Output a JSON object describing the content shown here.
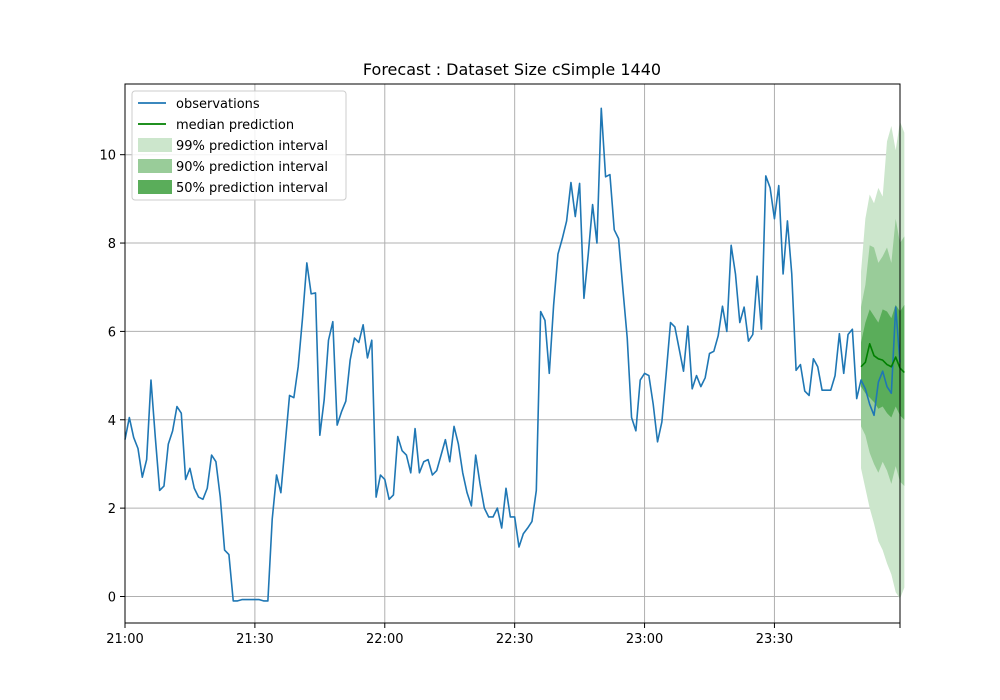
{
  "chart_data": {
    "type": "line",
    "title": "Forecast : Dataset Size cSimple 1440",
    "xlabel": "",
    "ylabel": "",
    "x_range": [
      "21:00",
      "23:59"
    ],
    "ylim": [
      -0.6,
      11.6
    ],
    "grid": true,
    "legend_position": "top-left",
    "x_tick_labels": [
      "21:00",
      "21:30",
      "22:00",
      "22:30",
      "23:00",
      "23:30"
    ],
    "y_ticks": [
      0,
      2,
      4,
      6,
      8,
      10
    ],
    "colors": {
      "observations": "#1f77b4",
      "median": "#008000",
      "band99": "#cce6cc",
      "band90": "#99cc99",
      "band50": "#5aad5a"
    },
    "legend": [
      {
        "label": "observations",
        "kind": "line",
        "color": "#1f77b4"
      },
      {
        "label": "median prediction",
        "kind": "line",
        "color": "#008000"
      },
      {
        "label": "99% prediction interval",
        "kind": "patch",
        "color": "#cce6cc"
      },
      {
        "label": "90% prediction interval",
        "kind": "patch",
        "color": "#99cc99"
      },
      {
        "label": "50% prediction interval",
        "kind": "patch",
        "color": "#5aad5a"
      }
    ],
    "observations": {
      "name": "observations",
      "minutes_start": 0,
      "step_minutes": 1,
      "values": [
        3.55,
        4.05,
        3.6,
        3.35,
        2.7,
        3.1,
        4.9,
        3.6,
        2.4,
        2.5,
        3.45,
        3.75,
        4.3,
        4.15,
        2.65,
        2.9,
        2.45,
        2.25,
        2.2,
        2.45,
        3.2,
        3.05,
        2.25,
        1.05,
        0.95,
        -0.1,
        -0.1,
        -0.07,
        -0.07,
        -0.07,
        -0.07,
        -0.07,
        -0.1,
        -0.1,
        1.75,
        2.75,
        2.35,
        3.45,
        4.55,
        4.5,
        5.2,
        6.3,
        7.55,
        6.85,
        6.87,
        3.65,
        4.45,
        5.8,
        6.22,
        3.88,
        4.18,
        4.42,
        5.35,
        5.85,
        5.75,
        6.15,
        5.4,
        5.8,
        2.25,
        2.75,
        2.65,
        2.2,
        2.3,
        3.62,
        3.3,
        3.2,
        2.8,
        3.8,
        2.8,
        3.05,
        3.1,
        2.75,
        2.85,
        3.2,
        3.55,
        3.05,
        3.85,
        3.45,
        2.8,
        2.35,
        2.05,
        3.2,
        2.55,
        2.0,
        1.8,
        1.8,
        2.0,
        1.55,
        2.45,
        1.8,
        1.8,
        1.12,
        1.42,
        1.55,
        1.7,
        2.4,
        6.45,
        6.25,
        5.05,
        6.6,
        7.75,
        8.1,
        8.5,
        9.37,
        8.6,
        9.35,
        6.75,
        7.75,
        8.87,
        8.0,
        11.05,
        9.5,
        9.55,
        8.3,
        8.1,
        6.95,
        5.85,
        4.05,
        3.75,
        4.9,
        5.05,
        5.0,
        4.35,
        3.5,
        3.95,
        5.05,
        6.2,
        6.1,
        5.6,
        5.1,
        6.12,
        4.7,
        5.0,
        4.75,
        4.95,
        5.5,
        5.55,
        5.9,
        6.57,
        6.0,
        7.95,
        7.3,
        6.2,
        6.55,
        5.78,
        5.93,
        7.25,
        6.05,
        9.52,
        9.25,
        8.55,
        9.3,
        7.3,
        8.5,
        7.3,
        5.12,
        5.25,
        4.65,
        4.55,
        5.38,
        5.2,
        4.67,
        4.67,
        4.67,
        5.0,
        5.95,
        5.05,
        5.93,
        6.05,
        4.48,
        4.9,
        4.7,
        4.35,
        4.1,
        4.85,
        5.1,
        4.75,
        4.6,
        6.55,
        5.3
      ]
    },
    "forecast": {
      "name": "median prediction",
      "minutes_start": 170,
      "step_minutes": 1,
      "median": [
        5.2,
        5.3,
        5.72,
        5.45,
        5.38,
        5.35,
        5.25,
        5.2,
        5.42,
        5.17,
        5.07
      ],
      "band50": {
        "lower": [
          4.75,
          4.6,
          4.5,
          4.4,
          4.25,
          4.3,
          4.15,
          4.05,
          4.3,
          4.1,
          4.0
        ],
        "upper": [
          5.75,
          6.2,
          6.5,
          6.35,
          6.2,
          6.5,
          6.45,
          6.3,
          6.6,
          6.45,
          6.6
        ]
      },
      "band90": {
        "lower": [
          3.85,
          3.65,
          3.25,
          3.0,
          2.8,
          3.05,
          2.85,
          2.55,
          2.95,
          2.6,
          2.5
        ],
        "upper": [
          6.55,
          7.05,
          7.95,
          7.9,
          7.55,
          7.7,
          7.9,
          7.55,
          8.55,
          8.0,
          8.15
        ]
      },
      "band99": {
        "lower": [
          2.9,
          2.45,
          2.0,
          1.65,
          1.25,
          1.05,
          0.75,
          0.5,
          0.1,
          -0.05,
          0.2
        ],
        "upper": [
          7.35,
          8.55,
          9.1,
          8.9,
          9.25,
          9.05,
          10.3,
          10.65,
          10.1,
          10.75,
          10.5
        ]
      }
    }
  }
}
